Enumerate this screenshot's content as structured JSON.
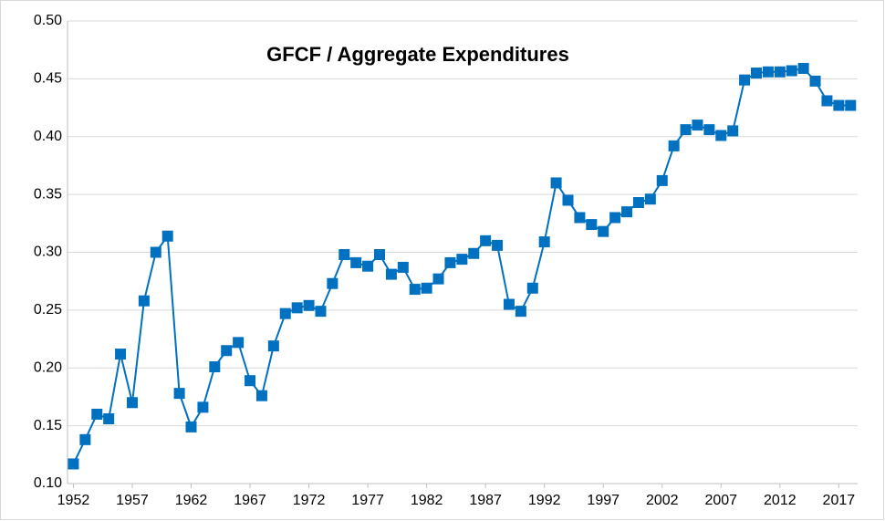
{
  "chart_data": {
    "type": "line",
    "title": "GFCF / Aggregate Expenditures",
    "x": [
      1952,
      1953,
      1954,
      1955,
      1956,
      1957,
      1958,
      1959,
      1960,
      1961,
      1962,
      1963,
      1964,
      1965,
      1966,
      1967,
      1968,
      1969,
      1970,
      1971,
      1972,
      1973,
      1974,
      1975,
      1976,
      1977,
      1978,
      1979,
      1980,
      1981,
      1982,
      1983,
      1984,
      1985,
      1986,
      1987,
      1988,
      1989,
      1990,
      1991,
      1992,
      1993,
      1994,
      1995,
      1996,
      1997,
      1998,
      1999,
      2000,
      2001,
      2002,
      2003,
      2004,
      2005,
      2006,
      2007,
      2008,
      2009,
      2010,
      2011,
      2012,
      2013,
      2014,
      2015,
      2016,
      2017,
      2018
    ],
    "series": [
      {
        "name": "GFCF / Aggregate Expenditures",
        "color": "#0070c0",
        "values": [
          0.117,
          0.138,
          0.16,
          0.156,
          0.212,
          0.17,
          0.258,
          0.3,
          0.314,
          0.178,
          0.149,
          0.166,
          0.201,
          0.215,
          0.222,
          0.189,
          0.176,
          0.219,
          0.247,
          0.252,
          0.254,
          0.249,
          0.273,
          0.298,
          0.291,
          0.288,
          0.298,
          0.281,
          0.287,
          0.268,
          0.269,
          0.277,
          0.291,
          0.294,
          0.299,
          0.31,
          0.306,
          0.255,
          0.249,
          0.269,
          0.309,
          0.36,
          0.345,
          0.33,
          0.324,
          0.318,
          0.33,
          0.335,
          0.343,
          0.346,
          0.362,
          0.392,
          0.406,
          0.41,
          0.406,
          0.401,
          0.405,
          0.449,
          0.455,
          0.456,
          0.456,
          0.457,
          0.459,
          0.448,
          0.431,
          0.427,
          0.427
        ]
      }
    ],
    "xlim": [
      1951.5,
      2018.6
    ],
    "xticks": [
      1952,
      1957,
      1962,
      1967,
      1972,
      1977,
      1982,
      1987,
      1992,
      1997,
      2002,
      2007,
      2012,
      2017
    ],
    "ylim": [
      0.1,
      0.5
    ],
    "yticks": [
      {
        "value": 0.1,
        "label": "0.10"
      },
      {
        "value": 0.15,
        "label": "0.15"
      },
      {
        "value": 0.2,
        "label": "0.20"
      },
      {
        "value": 0.25,
        "label": "0.25"
      },
      {
        "value": 0.3,
        "label": "0.30"
      },
      {
        "value": 0.35,
        "label": "0.35"
      },
      {
        "value": 0.4,
        "label": "0.40"
      },
      {
        "value": 0.45,
        "label": "0.45"
      },
      {
        "value": 0.5,
        "label": "0.50"
      }
    ],
    "grid": true
  }
}
